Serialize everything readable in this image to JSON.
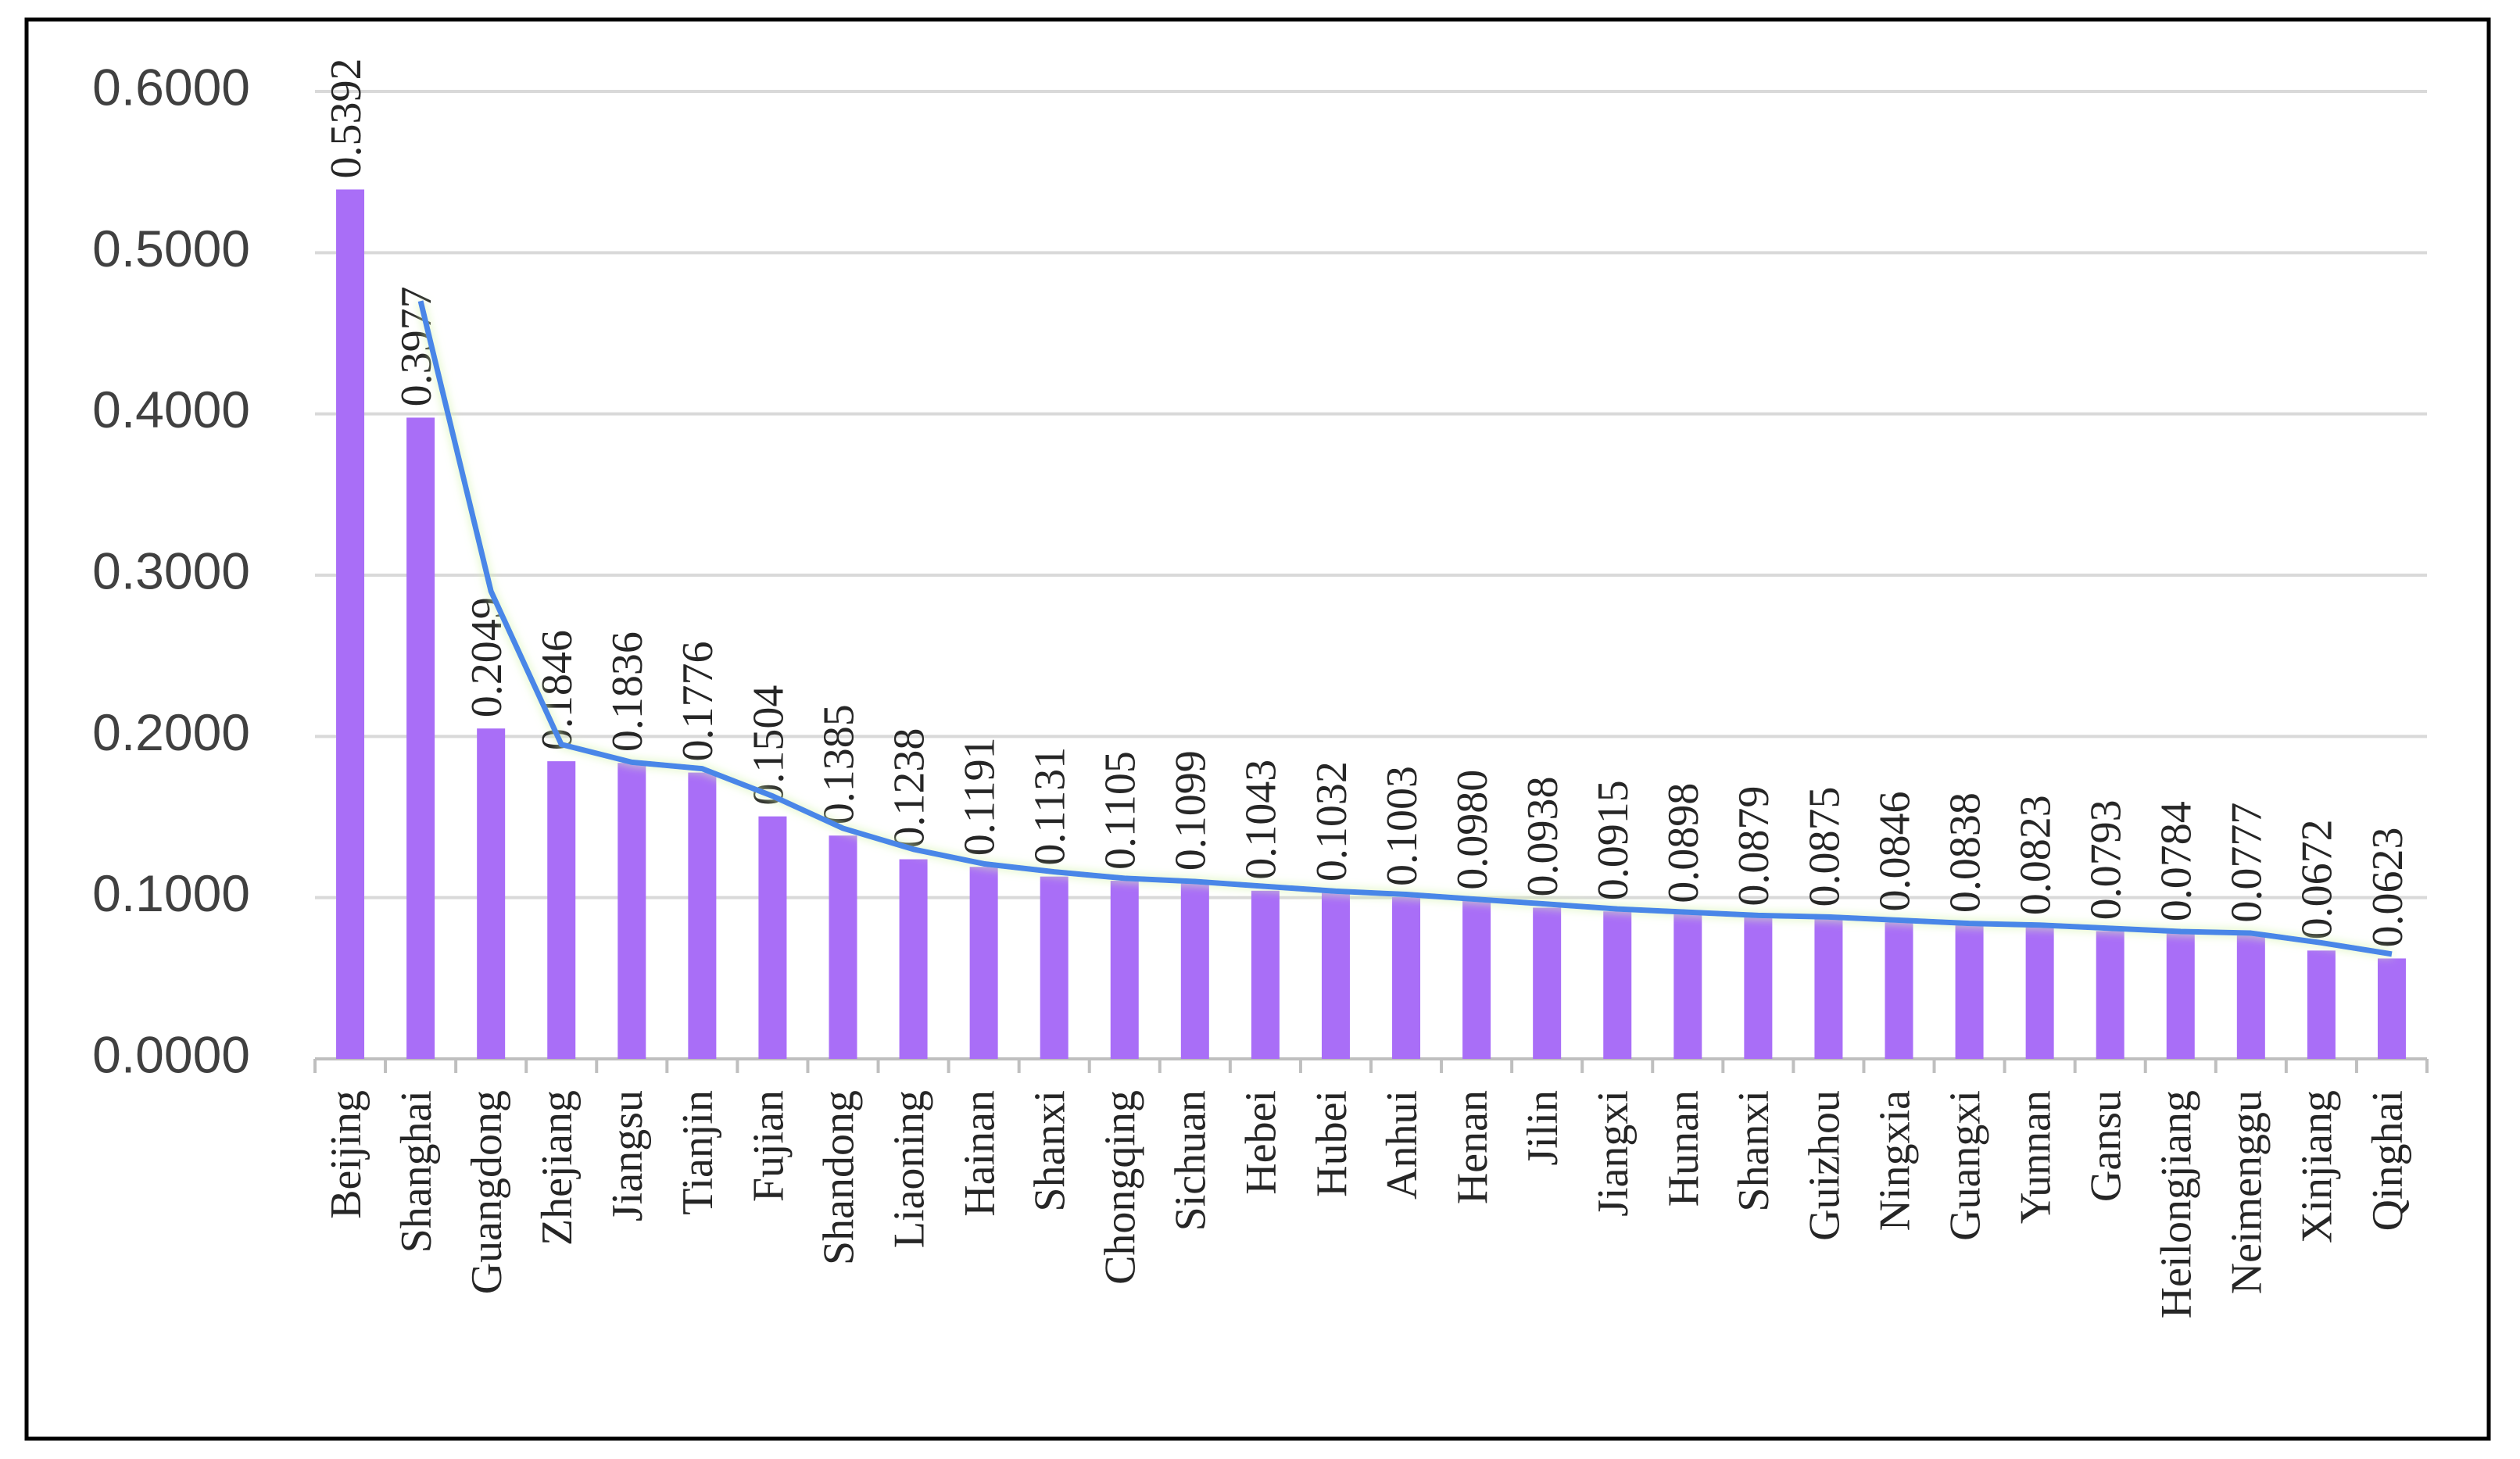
{
  "chart_data": {
    "type": "bar",
    "categories": [
      "Beijing",
      "Shanghai",
      "Guangdong",
      "Zhejiang",
      "Jiangsu",
      "Tianjin",
      "Fujian",
      "Shandong",
      "Liaoning",
      "Hainan",
      "Shanxi",
      "Chongqing",
      "Sichuan",
      "Hebei",
      "Hubei",
      "Anhui",
      "Henan",
      "Jilin",
      "Jiangxi",
      "Hunan",
      "Shanxi",
      "Guizhou",
      "Ningxia",
      "Guangxi",
      "Yunnan",
      "Gansu",
      "Heilongjiang",
      "Neimenggu",
      "Xinjiang",
      "Qinghai"
    ],
    "series": [
      {
        "type": "bar",
        "color": "#a96ef7",
        "values": [
          0.5392,
          0.3977,
          0.2049,
          0.1846,
          0.1836,
          0.1776,
          0.1504,
          0.1385,
          0.1238,
          0.1191,
          0.1131,
          0.1105,
          0.1099,
          0.1043,
          0.1032,
          0.1003,
          0.098,
          0.0938,
          0.0915,
          0.0898,
          0.0879,
          0.0875,
          0.0846,
          0.0838,
          0.0823,
          0.0793,
          0.0784,
          0.0777,
          0.0672,
          0.0623
        ],
        "value_labels": [
          "0.5392",
          "0.3977",
          "0.2049",
          "0.1846",
          "0.1836",
          "0.1776",
          "0.1504",
          "0.1385",
          "0.1238",
          "0.1191",
          "0.1131",
          "0.1105",
          "0.1099",
          "0.1043",
          "0.1032",
          "0.1003",
          "0.0980",
          "0.0938",
          "0.0915",
          "0.0898",
          "0.0879",
          "0.0875",
          "0.0846",
          "0.0838",
          "0.0823",
          "0.0793",
          "0.0784",
          "0.0777",
          "0.0672",
          "0.0623"
        ]
      },
      {
        "type": "line",
        "color": "#4a86e8",
        "values": [
          null,
          0.47,
          0.29,
          0.195,
          0.184,
          0.18,
          0.163,
          0.143,
          0.13,
          0.121,
          0.116,
          0.112,
          0.11,
          0.107,
          0.104,
          0.102,
          0.099,
          0.096,
          0.093,
          0.091,
          0.089,
          0.088,
          0.086,
          0.084,
          0.083,
          0.081,
          0.079,
          0.078,
          0.072,
          0.065
        ]
      }
    ],
    "ylim": [
      0,
      0.6
    ],
    "yticks": [
      {
        "value": 0,
        "label": "0.0000"
      },
      {
        "value": 0.1,
        "label": "0.1000"
      },
      {
        "value": 0.2,
        "label": "0.2000"
      },
      {
        "value": 0.3,
        "label": "0.3000"
      },
      {
        "value": 0.4,
        "label": "0.4000"
      },
      {
        "value": 0.5,
        "label": "0.5000"
      },
      {
        "value": 0.6,
        "label": "0.6000"
      }
    ],
    "grid": true
  }
}
